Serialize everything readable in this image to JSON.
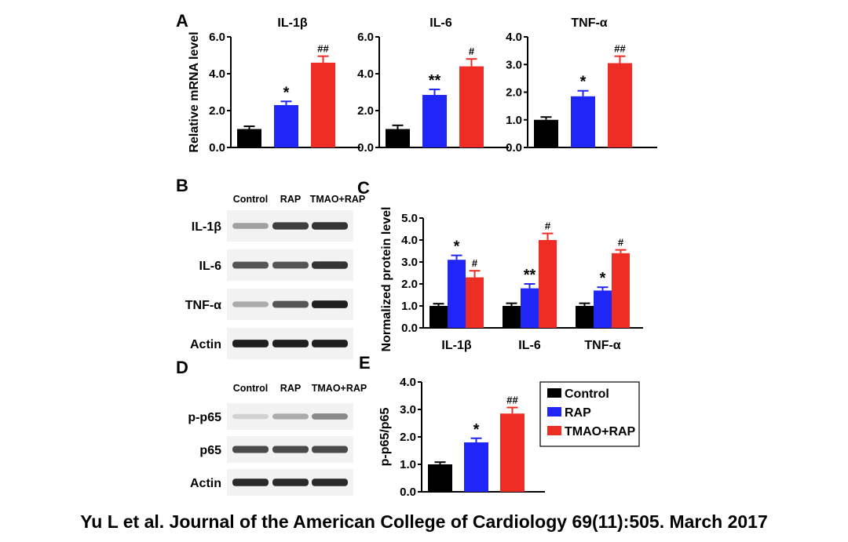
{
  "colors": {
    "Control": "#000000",
    "RAP": "#1f26f5",
    "TMAO+RAP": "#ee2e24"
  },
  "panels": {
    "A": "A",
    "B": "B",
    "C": "C",
    "D": "D",
    "E": "E"
  },
  "chart_data": [
    {
      "id": "A1",
      "type": "bar",
      "title": "IL-1β",
      "ylabel": "Relative mRNA level",
      "ylim": [
        0,
        6
      ],
      "yticks": [
        "0.0",
        "2.0",
        "4.0",
        "6.0"
      ],
      "categories": [
        "Control",
        "RAP",
        "TMAO+RAP"
      ],
      "values": [
        1.0,
        2.3,
        4.6
      ],
      "errors": [
        0.15,
        0.2,
        0.35
      ],
      "annotations": [
        "",
        "*",
        "##"
      ]
    },
    {
      "id": "A2",
      "type": "bar",
      "title": "IL-6",
      "ylabel": "",
      "ylim": [
        0,
        6
      ],
      "yticks": [
        "0.0",
        "2.0",
        "4.0",
        "6.0"
      ],
      "categories": [
        "Control",
        "RAP",
        "TMAO+RAP"
      ],
      "values": [
        1.0,
        2.85,
        4.4
      ],
      "errors": [
        0.2,
        0.3,
        0.4
      ],
      "annotations": [
        "",
        "**",
        "#"
      ]
    },
    {
      "id": "A3",
      "type": "bar",
      "title": "TNF-α",
      "ylabel": "",
      "ylim": [
        0,
        4
      ],
      "yticks": [
        "0.0",
        "1.0",
        "2.0",
        "3.0",
        "4.0"
      ],
      "categories": [
        "Control",
        "RAP",
        "TMAO+RAP"
      ],
      "values": [
        1.0,
        1.85,
        3.05
      ],
      "errors": [
        0.1,
        0.2,
        0.25
      ],
      "annotations": [
        "",
        "*",
        "##"
      ]
    },
    {
      "id": "C",
      "type": "bar",
      "title": "",
      "ylabel": "Normalized protein level",
      "ylim": [
        0,
        5
      ],
      "yticks": [
        "0.0",
        "1.0",
        "2.0",
        "3.0",
        "4.0",
        "5.0"
      ],
      "categories": [
        "IL-1β",
        "IL-6",
        "TNF-α"
      ],
      "series": [
        {
          "name": "Control",
          "values": [
            1.0,
            1.0,
            1.0
          ],
          "errors": [
            0.1,
            0.12,
            0.12
          ],
          "annotations": [
            "",
            "",
            ""
          ]
        },
        {
          "name": "RAP",
          "values": [
            3.1,
            1.8,
            1.7
          ],
          "errors": [
            0.2,
            0.2,
            0.15
          ],
          "annotations": [
            "*",
            "**",
            "*"
          ]
        },
        {
          "name": "TMAO+RAP",
          "values": [
            2.3,
            4.0,
            3.4
          ],
          "errors": [
            0.3,
            0.3,
            0.15
          ],
          "annotations": [
            "#",
            "#",
            "#"
          ]
        }
      ]
    },
    {
      "id": "E",
      "type": "bar",
      "title": "",
      "ylabel": "p-p65/p65",
      "ylim": [
        0,
        4
      ],
      "yticks": [
        "0.0",
        "1.0",
        "2.0",
        "3.0",
        "4.0"
      ],
      "categories": [
        "Control",
        "RAP",
        "TMAO+RAP"
      ],
      "values": [
        1.0,
        1.8,
        2.85
      ],
      "errors": [
        0.08,
        0.15,
        0.22
      ],
      "annotations": [
        "",
        "*",
        "##"
      ]
    }
  ],
  "blots": {
    "B": {
      "lanes": [
        "Control",
        "RAP",
        "TMAO+RAP"
      ],
      "rows": [
        {
          "label": "IL-1β",
          "intensity": [
            0.35,
            0.8,
            0.85
          ]
        },
        {
          "label": "IL-6",
          "intensity": [
            0.7,
            0.7,
            0.85
          ]
        },
        {
          "label": "TNF-α",
          "intensity": [
            0.3,
            0.7,
            0.95
          ]
        },
        {
          "label": "Actin",
          "intensity": [
            0.95,
            0.95,
            0.95
          ]
        }
      ]
    },
    "D": {
      "lanes": [
        "Control",
        "RAP",
        "TMAO+RAP"
      ],
      "rows": [
        {
          "label": "p-p65",
          "intensity": [
            0.12,
            0.3,
            0.45
          ]
        },
        {
          "label": "p65",
          "intensity": [
            0.75,
            0.75,
            0.75
          ]
        },
        {
          "label": "Actin",
          "intensity": [
            0.9,
            0.9,
            0.9
          ]
        }
      ]
    }
  },
  "legend": [
    "Control",
    "RAP",
    "TMAO+RAP"
  ],
  "citation": "Yu L et al. Journal of the American College of Cardiology 69(11):505. March 2017"
}
